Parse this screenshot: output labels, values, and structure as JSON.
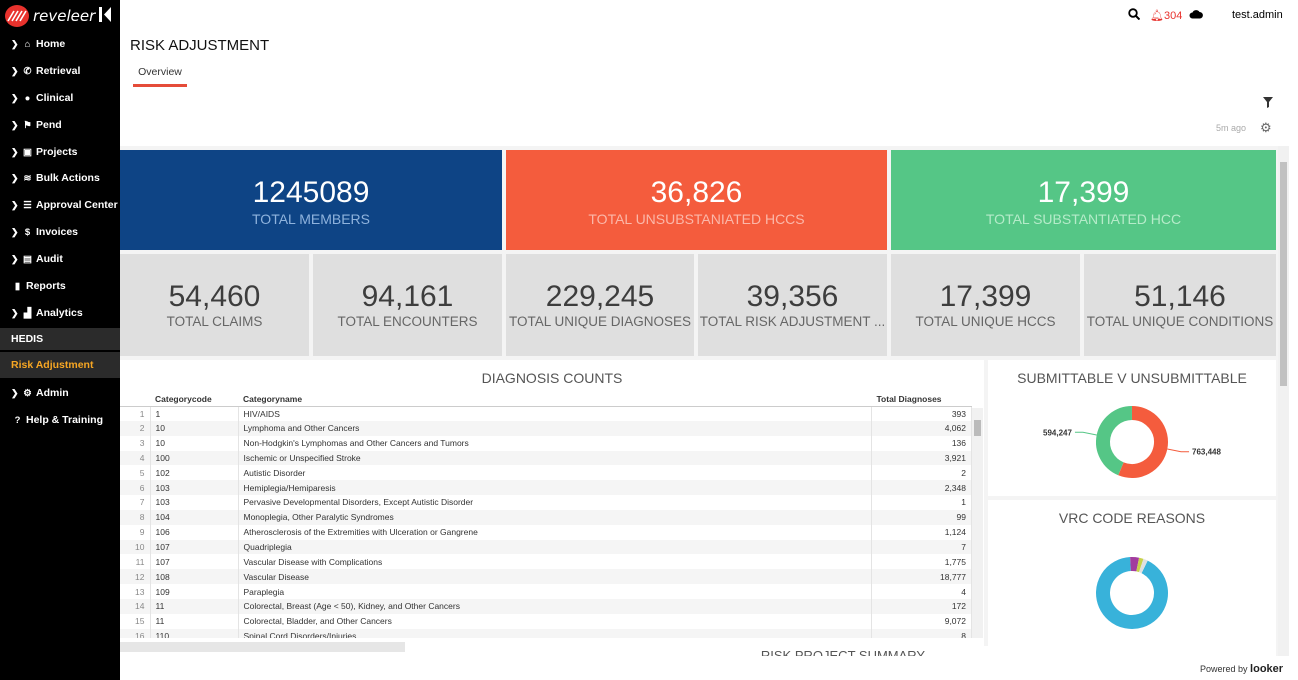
{
  "app": {
    "brand": "reveleer"
  },
  "sidebar": {
    "items": [
      {
        "label": "Home",
        "icon": "home-icon"
      },
      {
        "label": "Retrieval",
        "icon": "phone-icon"
      },
      {
        "label": "Clinical",
        "icon": "user-icon"
      },
      {
        "label": "Pend",
        "icon": "flag-icon"
      },
      {
        "label": "Projects",
        "icon": "briefcase-icon"
      },
      {
        "label": "Bulk Actions",
        "icon": "stack-icon"
      },
      {
        "label": "Approval Center",
        "icon": "list-icon"
      },
      {
        "label": "Invoices",
        "icon": "dollar-icon"
      },
      {
        "label": "Audit",
        "icon": "clipboard-icon"
      },
      {
        "label": "Reports",
        "icon": "file-icon"
      },
      {
        "label": "Analytics",
        "icon": "chart-icon"
      }
    ],
    "section_label": "HEDIS",
    "active_label": "Risk Adjustment",
    "bottom_items": [
      {
        "label": "Admin",
        "icon": "gear-icon"
      },
      {
        "label": "Help & Training",
        "icon": "question-icon"
      }
    ]
  },
  "topbar": {
    "notifications": "304",
    "user": "test.admin"
  },
  "page": {
    "title": "RISK ADJUSTMENT",
    "tab": "Overview",
    "updated": "5m ago"
  },
  "tiles": {
    "members": {
      "value": "1245089",
      "label": "TOTAL MEMBERS",
      "color": "#0e4485"
    },
    "unsubstantiated": {
      "value": "36,826",
      "label": "TOTAL UNSUBSTANIATED HCCs",
      "color": "#f45c3d"
    },
    "substantiated": {
      "value": "17,399",
      "label": "TOTAL SUBSTANTIATED HCC",
      "color": "#55c686"
    },
    "claims": {
      "value": "54,460",
      "label": "TOTAL CLAIMS"
    },
    "encounters": {
      "value": "94,161",
      "label": "TOTAL ENCOUNTERS"
    },
    "unique_diagnoses": {
      "value": "229,245",
      "label": "TOTAL UNIQUE DIAGNOSES"
    },
    "risk_adjustment": {
      "value": "39,356",
      "label": "TOTAL RISK ADJUSTMENT ..."
    },
    "unique_hccs": {
      "value": "17,399",
      "label": "TOTAL UNIQUE HCCs"
    },
    "unique_conditions": {
      "value": "51,146",
      "label": "TOTAL UNIQUE CONDITIONS"
    }
  },
  "diagnosis": {
    "title": "DIAGNOSIS COUNTS",
    "columns": [
      "Categorycode",
      "Categoryname",
      "Total Diagnoses"
    ],
    "rows": [
      {
        "n": "1",
        "code": "1",
        "name": "HIV/AIDS",
        "total": "393"
      },
      {
        "n": "2",
        "code": "10",
        "name": "Lymphoma and Other Cancers",
        "total": "4,062"
      },
      {
        "n": "3",
        "code": "10",
        "name": "Non-Hodgkin's Lymphomas and Other Cancers and Tumors",
        "total": "136"
      },
      {
        "n": "4",
        "code": "100",
        "name": "Ischemic or Unspecified Stroke",
        "total": "3,921"
      },
      {
        "n": "5",
        "code": "102",
        "name": "Autistic Disorder",
        "total": "2"
      },
      {
        "n": "6",
        "code": "103",
        "name": "Hemiplegia/Hemiparesis",
        "total": "2,348"
      },
      {
        "n": "7",
        "code": "103",
        "name": "Pervasive Developmental Disorders, Except Autistic Disorder",
        "total": "1"
      },
      {
        "n": "8",
        "code": "104",
        "name": "Monoplegia, Other Paralytic Syndromes",
        "total": "99"
      },
      {
        "n": "9",
        "code": "106",
        "name": "Atherosclerosis of the Extremities with Ulceration or Gangrene",
        "total": "1,124"
      },
      {
        "n": "10",
        "code": "107",
        "name": "Quadriplegia",
        "total": "7"
      },
      {
        "n": "11",
        "code": "107",
        "name": "Vascular Disease with Complications",
        "total": "1,775"
      },
      {
        "n": "12",
        "code": "108",
        "name": "Vascular Disease",
        "total": "18,777"
      },
      {
        "n": "13",
        "code": "109",
        "name": "Paraplegia",
        "total": "4"
      },
      {
        "n": "14",
        "code": "11",
        "name": "Colorectal, Breast (Age < 50), Kidney, and Other Cancers",
        "total": "172"
      },
      {
        "n": "15",
        "code": "11",
        "name": "Colorectal, Bladder, and Other Cancers",
        "total": "9,072"
      },
      {
        "n": "16",
        "code": "110",
        "name": "Spinal Cord Disorders/Injuries",
        "total": "8"
      }
    ]
  },
  "submittable": {
    "title": "SUBMITTABLE V UNSUBMITTABLE"
  },
  "vrc": {
    "title": "VRC CODE REASONS"
  },
  "bottom": {
    "title": "RISK PROJECT SUMMARY"
  },
  "footer": {
    "powered": "Powered by",
    "brand": "looker"
  },
  "chart_data": [
    {
      "type": "pie",
      "title": "SUBMITTABLE V UNSUBMITTABLE",
      "labels": [
        "594,247",
        "763,448"
      ],
      "values": [
        594247,
        763448
      ],
      "colors": [
        "#55c686",
        "#f45c3d"
      ]
    },
    {
      "type": "pie",
      "title": "VRC CODE REASONS",
      "values": [
        92,
        4,
        2,
        2
      ],
      "colors": [
        "#38b2da",
        "#a23c9e",
        "#c8d24a",
        "#e0e0e0"
      ]
    }
  ]
}
